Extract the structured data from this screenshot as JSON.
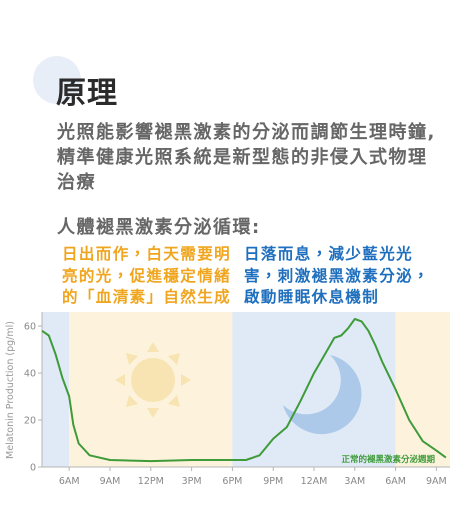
{
  "header": {
    "title": "原理"
  },
  "paragraph": "光照能影響褪黑激素的分泌而調節生理時鐘,精準健康光照系統是新型態的非侵入式物理治療",
  "subheading": "人體褪黑激素分泌循環:",
  "notes": {
    "day": "日出而作，白天需要明亮的光，促進穩定情緒的「血清素」自然生成",
    "night": "日落而息，減少藍光光害，刺激褪黑激素分泌，啟動睡眠休息機制"
  },
  "chart_data": {
    "type": "line",
    "ylabel": "Melatonin Production (pg/ml)",
    "xlim": [
      4,
      34
    ],
    "ylim": [
      0,
      66
    ],
    "yticks": [
      0,
      20,
      40,
      60
    ],
    "xticks": [
      {
        "value": 6,
        "label": "6AM"
      },
      {
        "value": 9,
        "label": "9AM"
      },
      {
        "value": 12,
        "label": "12PM"
      },
      {
        "value": 15,
        "label": "3PM"
      },
      {
        "value": 18,
        "label": "6PM"
      },
      {
        "value": 21,
        "label": "9PM"
      },
      {
        "value": 24,
        "label": "12AM"
      },
      {
        "value": 27,
        "label": "3AM"
      },
      {
        "value": 30,
        "label": "6AM"
      },
      {
        "value": 33,
        "label": "9AM"
      }
    ],
    "shaded_spans": [
      {
        "from": 4,
        "to": 6,
        "color": "#dfeaf6"
      },
      {
        "from": 6,
        "to": 18,
        "color": "#fdf3dd"
      },
      {
        "from": 18,
        "to": 30,
        "color": "#dfeaf6"
      },
      {
        "from": 30,
        "to": 34,
        "color": "#fdf3dd"
      }
    ],
    "series": [
      {
        "name": "正常的褪黑激素分泌週期",
        "color": "#3f9b3a",
        "x": [
          4,
          4.5,
          5,
          5.5,
          6,
          6.3,
          6.7,
          7.5,
          9,
          12,
          15,
          18,
          19,
          20,
          21,
          22,
          23,
          24,
          25,
          25.5,
          26,
          26.5,
          27,
          27.5,
          28,
          28.5,
          29,
          30,
          31,
          32,
          33,
          33.7
        ],
        "values": [
          58,
          56,
          48,
          38,
          30,
          18,
          10,
          5,
          3,
          2.5,
          3,
          3,
          3,
          5,
          12,
          17,
          28,
          40,
          50,
          55,
          56,
          59,
          63,
          62,
          58,
          52,
          45,
          33,
          20,
          11,
          7,
          4
        ]
      }
    ]
  }
}
